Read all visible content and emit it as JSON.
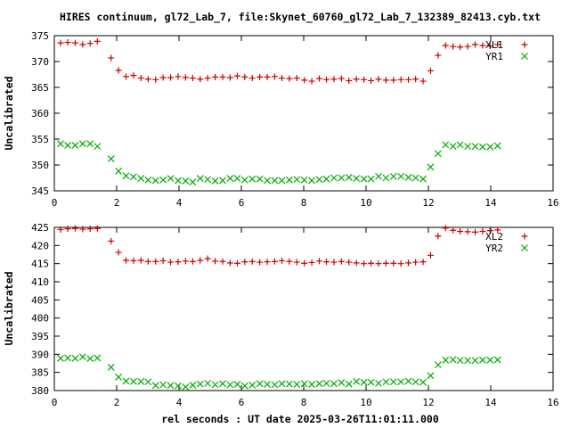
{
  "title": "HIRES continuum, gl72_Lab_7, file:Skynet_60760_gl72_Lab_7_132389_82413.cyb.txt",
  "xlabel": "rel seconds : UT date 2025-03-26T11:01:11.000",
  "chart_data": [
    {
      "type": "scatter",
      "ylabel": "Uncalibrated",
      "xlim": [
        0,
        16
      ],
      "ylim": [
        345,
        375
      ],
      "xticks": [
        0,
        2,
        4,
        6,
        8,
        10,
        12,
        14,
        16
      ],
      "yticks": [
        345,
        350,
        355,
        360,
        365,
        370,
        375
      ],
      "legend_position": "top-right",
      "series": [
        {
          "name": "XL1",
          "marker": "plus",
          "color": "#cc0000",
          "x": [
            0.2,
            0.43,
            0.67,
            0.91,
            1.15,
            1.38,
            1.82,
            2.06,
            2.3,
            2.54,
            2.78,
            3.01,
            3.25,
            3.49,
            3.73,
            3.97,
            4.21,
            4.44,
            4.68,
            4.92,
            5.16,
            5.4,
            5.64,
            5.87,
            6.11,
            6.35,
            6.59,
            6.83,
            7.07,
            7.3,
            7.54,
            7.78,
            8.02,
            8.26,
            8.5,
            8.73,
            8.97,
            9.21,
            9.45,
            9.69,
            9.93,
            10.16,
            10.4,
            10.64,
            10.88,
            11.12,
            11.36,
            11.59,
            11.83,
            12.07,
            12.31,
            12.55,
            12.79,
            13.02,
            13.26,
            13.5,
            13.74,
            13.98,
            14.22
          ],
          "y": [
            373.6,
            373.7,
            373.6,
            373.3,
            373.5,
            373.9,
            370.7,
            368.3,
            367.1,
            367.3,
            366.8,
            366.6,
            366.5,
            366.9,
            366.9,
            367.1,
            366.9,
            366.8,
            366.6,
            366.8,
            367.0,
            367.0,
            366.9,
            367.2,
            367.0,
            366.8,
            367.0,
            367.0,
            367.1,
            366.8,
            366.7,
            366.8,
            366.4,
            366.2,
            366.7,
            366.5,
            366.6,
            366.7,
            366.3,
            366.6,
            366.5,
            366.3,
            366.6,
            366.4,
            366.4,
            366.5,
            366.5,
            366.6,
            366.2,
            368.2,
            371.2,
            373.1,
            372.9,
            372.8,
            372.9,
            373.3,
            373.1,
            373.0,
            373.3
          ]
        },
        {
          "name": "YR1",
          "marker": "cross",
          "color": "#00aa00",
          "x": [
            0.2,
            0.43,
            0.67,
            0.91,
            1.15,
            1.38,
            1.82,
            2.06,
            2.3,
            2.54,
            2.78,
            3.01,
            3.25,
            3.49,
            3.73,
            3.97,
            4.21,
            4.44,
            4.68,
            4.92,
            5.16,
            5.4,
            5.64,
            5.87,
            6.11,
            6.35,
            6.59,
            6.83,
            7.07,
            7.3,
            7.54,
            7.78,
            8.02,
            8.26,
            8.5,
            8.73,
            8.97,
            9.21,
            9.45,
            9.69,
            9.93,
            10.16,
            10.4,
            10.64,
            10.88,
            11.12,
            11.36,
            11.59,
            11.83,
            12.07,
            12.31,
            12.55,
            12.79,
            13.02,
            13.26,
            13.5,
            13.74,
            13.98,
            14.22
          ],
          "y": [
            354.1,
            353.8,
            353.8,
            354.1,
            354.1,
            353.6,
            351.2,
            348.8,
            347.9,
            347.7,
            347.4,
            347.1,
            347.0,
            347.1,
            347.4,
            347.0,
            346.9,
            346.7,
            347.4,
            347.2,
            346.9,
            347.0,
            347.4,
            347.4,
            347.1,
            347.3,
            347.3,
            347.0,
            347.0,
            347.0,
            347.1,
            347.2,
            347.1,
            347.0,
            347.2,
            347.3,
            347.5,
            347.5,
            347.6,
            347.4,
            347.3,
            347.3,
            347.8,
            347.5,
            347.8,
            347.8,
            347.6,
            347.5,
            347.3,
            349.6,
            352.2,
            353.9,
            353.6,
            353.9,
            353.6,
            353.6,
            353.5,
            353.5,
            353.7
          ]
        }
      ]
    },
    {
      "type": "scatter",
      "ylabel": "Uncalibrated",
      "xlim": [
        0,
        16
      ],
      "ylim": [
        380,
        425
      ],
      "xticks": [
        0,
        2,
        4,
        6,
        8,
        10,
        12,
        14,
        16
      ],
      "yticks": [
        380,
        385,
        390,
        395,
        400,
        405,
        410,
        415,
        420,
        425
      ],
      "legend_position": "top-right",
      "series": [
        {
          "name": "XL2",
          "marker": "plus",
          "color": "#cc0000",
          "x": [
            0.2,
            0.43,
            0.67,
            0.91,
            1.15,
            1.38,
            1.82,
            2.06,
            2.3,
            2.54,
            2.78,
            3.01,
            3.25,
            3.49,
            3.73,
            3.97,
            4.21,
            4.44,
            4.68,
            4.92,
            5.16,
            5.4,
            5.64,
            5.87,
            6.11,
            6.35,
            6.59,
            6.83,
            7.07,
            7.3,
            7.54,
            7.78,
            8.02,
            8.26,
            8.5,
            8.73,
            8.97,
            9.21,
            9.45,
            9.69,
            9.93,
            10.16,
            10.4,
            10.64,
            10.88,
            11.12,
            11.36,
            11.59,
            11.83,
            12.07,
            12.31,
            12.55,
            12.79,
            13.02,
            13.26,
            13.5,
            13.74,
            13.98,
            14.22
          ],
          "y": [
            424.4,
            424.6,
            424.7,
            424.5,
            424.6,
            424.7,
            421.2,
            418.1,
            415.9,
            415.8,
            415.9,
            415.6,
            415.6,
            415.8,
            415.4,
            415.5,
            415.7,
            415.6,
            415.9,
            416.4,
            415.7,
            415.6,
            415.2,
            415.1,
            415.5,
            415.6,
            415.4,
            415.5,
            415.6,
            415.8,
            415.6,
            415.4,
            415.1,
            415.3,
            415.7,
            415.5,
            415.4,
            415.6,
            415.4,
            415.2,
            415.0,
            415.1,
            415.0,
            415.1,
            415.1,
            415.0,
            415.2,
            415.4,
            415.5,
            417.3,
            422.6,
            424.8,
            424.2,
            423.9,
            423.8,
            423.7,
            423.9,
            424.1,
            424.3
          ]
        },
        {
          "name": "YR2",
          "marker": "cross",
          "color": "#00aa00",
          "x": [
            0.2,
            0.43,
            0.67,
            0.91,
            1.15,
            1.38,
            1.82,
            2.06,
            2.3,
            2.54,
            2.78,
            3.01,
            3.25,
            3.49,
            3.73,
            3.97,
            4.21,
            4.44,
            4.68,
            4.92,
            5.16,
            5.4,
            5.64,
            5.87,
            6.11,
            6.35,
            6.59,
            6.83,
            7.07,
            7.3,
            7.54,
            7.78,
            8.02,
            8.26,
            8.5,
            8.73,
            8.97,
            9.21,
            9.45,
            9.69,
            9.93,
            10.16,
            10.4,
            10.64,
            10.88,
            11.12,
            11.36,
            11.59,
            11.83,
            12.07,
            12.31,
            12.55,
            12.79,
            13.02,
            13.26,
            13.5,
            13.74,
            13.98,
            14.22
          ],
          "y": [
            388.9,
            389.0,
            388.9,
            389.3,
            388.8,
            389.0,
            386.4,
            383.7,
            382.6,
            382.5,
            382.5,
            382.4,
            381.4,
            381.6,
            381.4,
            381.3,
            381.0,
            381.5,
            381.8,
            382.0,
            381.6,
            381.9,
            381.6,
            381.7,
            381.3,
            381.5,
            381.9,
            381.7,
            381.6,
            381.9,
            381.8,
            381.7,
            381.9,
            381.7,
            381.9,
            382.0,
            381.9,
            382.2,
            381.8,
            382.5,
            382.3,
            382.3,
            382.0,
            382.4,
            382.4,
            382.4,
            382.6,
            382.4,
            382.3,
            384.1,
            387.1,
            388.4,
            388.5,
            388.3,
            388.3,
            388.3,
            388.4,
            388.4,
            388.5
          ]
        }
      ]
    }
  ]
}
